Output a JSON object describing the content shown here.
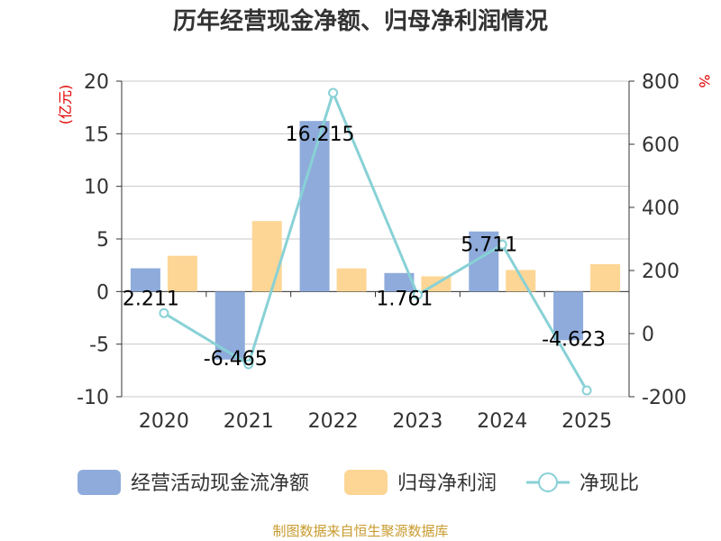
{
  "chart_data": {
    "type": "bar",
    "title": "历年经营现金净额、归母净利润情况",
    "categories": [
      "2020",
      "2021",
      "2022",
      "2023",
      "2024",
      "2025"
    ],
    "series": [
      {
        "name": "经营活动现金流净额",
        "axis": "left",
        "kind": "bar",
        "color": "#8eabdb",
        "values": [
          2.211,
          -6.465,
          16.215,
          1.761,
          5.711,
          -4.623
        ],
        "labels": [
          "2.211",
          "-6.465",
          "16.215",
          "1.761",
          "5.711",
          "-4.623"
        ]
      },
      {
        "name": "归母净利润",
        "axis": "left",
        "kind": "bar",
        "color": "#fdd695",
        "values": [
          3.4,
          6.7,
          2.2,
          1.45,
          2.05,
          2.6
        ]
      },
      {
        "name": "净现比",
        "axis": "right",
        "kind": "line",
        "color": "#88d1d6",
        "values": [
          65,
          -97,
          763,
          123,
          282,
          -180
        ]
      }
    ],
    "y_left": {
      "unit": "(亿元)",
      "ylim": [
        -10,
        20
      ],
      "ticks": [
        20,
        15,
        10,
        5,
        0,
        -5,
        -10
      ]
    },
    "y_right": {
      "unit": "%",
      "ylim": [
        -200,
        800
      ],
      "ticks": [
        800,
        600,
        400,
        200,
        0,
        -200
      ]
    },
    "grid": true,
    "legend_position": "bottom"
  },
  "source_text": "制图数据来自恒生聚源数据库"
}
